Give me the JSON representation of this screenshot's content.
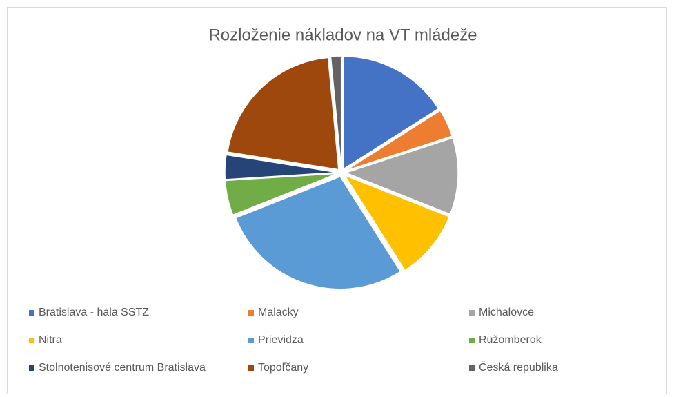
{
  "chart_data": {
    "type": "pie",
    "title": "Rozloženie nákladov na VT mládeže",
    "categories": [
      "Bratislava - hala SSTZ",
      "Malacky",
      "Michalovce",
      "Nitra",
      "Prievidza",
      "Ružomberok",
      "Stolnotenisové centrum Bratislava",
      "Topoľčany",
      "Česká republika"
    ],
    "values": [
      16,
      4,
      11,
      10,
      28,
      5,
      3.5,
      21,
      1.5
    ],
    "colors": [
      "#4472c4",
      "#ed7d31",
      "#a5a5a5",
      "#ffc000",
      "#5b9bd5",
      "#70ad47",
      "#264478",
      "#9e480e",
      "#636363"
    ],
    "legend": "bottom"
  }
}
